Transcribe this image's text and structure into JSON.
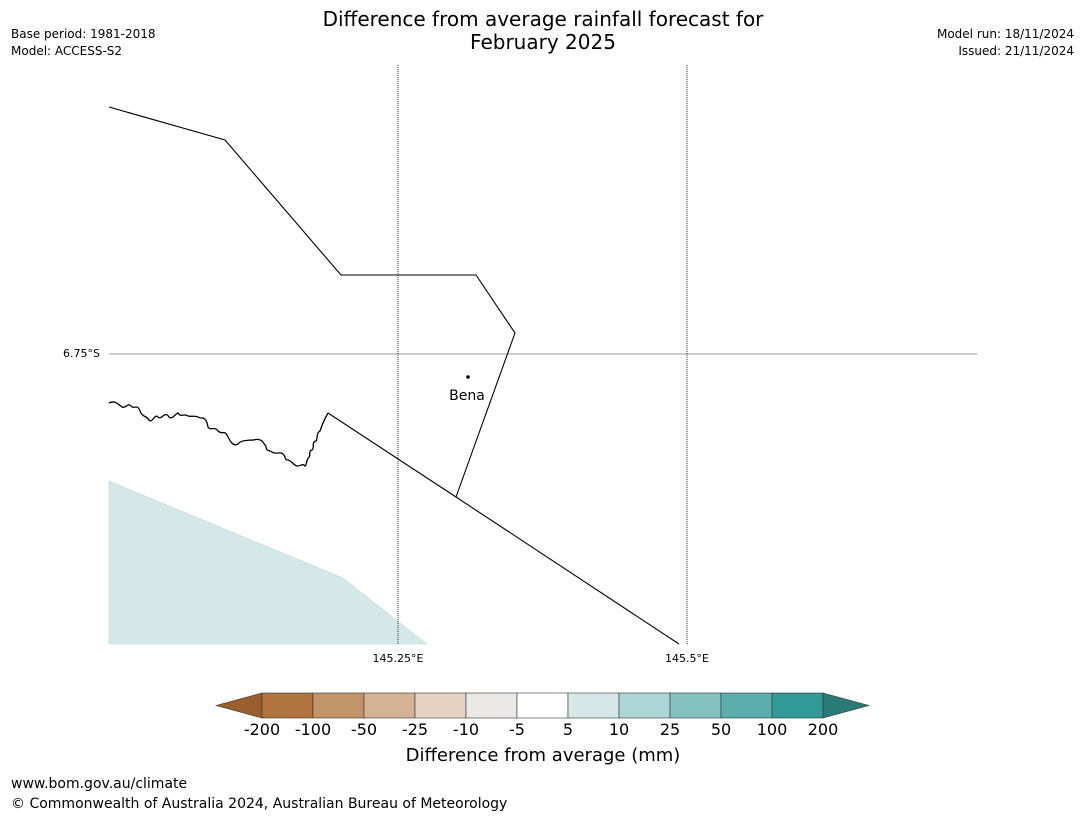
{
  "title": {
    "line1": "Difference from average rainfall forecast for",
    "line2": "February 2025"
  },
  "meta": {
    "base_period": "Base period: 1981-2018",
    "model": "Model: ACCESS-S2",
    "model_run": "Model run: 18/11/2024",
    "issued": "Issued: 21/11/2024"
  },
  "map": {
    "lat_label": "6.75°S",
    "lon_labels": [
      "145.25°E",
      "145.5°E"
    ],
    "place": {
      "name": "Bena"
    }
  },
  "colorbar": {
    "label": "Difference from average (mm)",
    "ticks": [
      "-200",
      "-100",
      "-50",
      "-25",
      "-10",
      "-5",
      "5",
      "10",
      "25",
      "50",
      "100",
      "200"
    ],
    "colors": [
      "#9a5f2e",
      "#af753c",
      "#c39468",
      "#d4b394",
      "#e6d2c2",
      "#ebe9e6",
      "#ffffff",
      "#d4e8e8",
      "#acd6d6",
      "#82c2c0",
      "#5baeae",
      "#319a99",
      "#2a7a78"
    ]
  },
  "footer": {
    "url": "www.bom.gov.au/climate",
    "copyright": "© Commonwealth of Australia 2024, Australian Bureau of Meteorology"
  }
}
